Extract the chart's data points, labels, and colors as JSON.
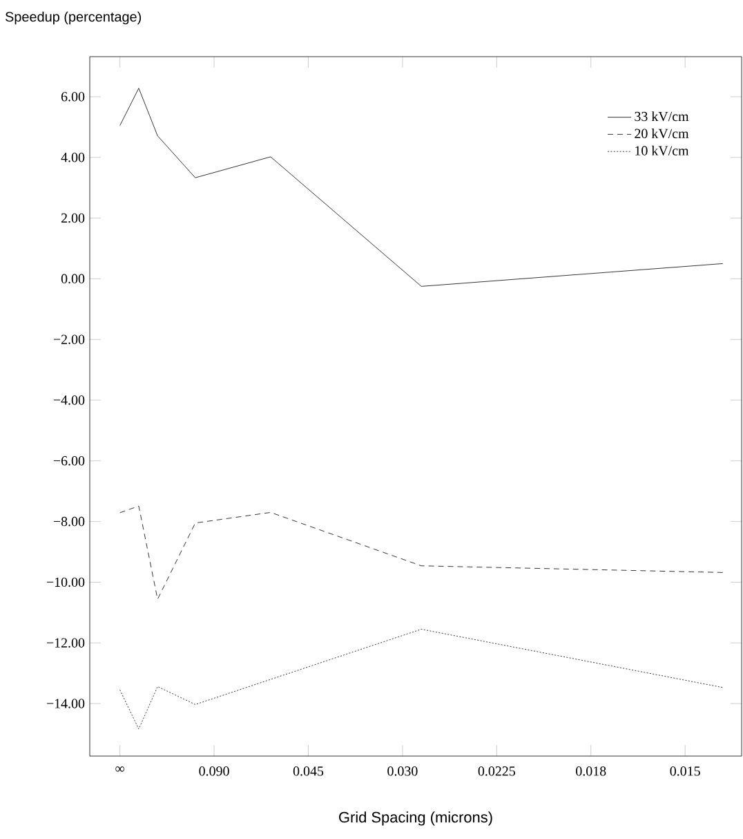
{
  "chart_data": {
    "type": "line",
    "ylabel": "Speedup (percentage)",
    "xlabel": "Grid Spacing (microns)",
    "categories": [
      "∞",
      null,
      null,
      null,
      null,
      "0.090",
      null,
      null,
      null,
      null,
      "0.045",
      null,
      null,
      null,
      null,
      "0.030",
      null,
      null,
      null,
      null,
      "0.0225",
      null,
      null,
      null,
      null,
      "0.018",
      null,
      null,
      null,
      null,
      "0.015",
      null,
      null,
      null
    ],
    "ylim": [
      -15.73,
      7.32
    ],
    "yticks": [
      {
        "value": -14,
        "label": "−14.00"
      },
      {
        "value": -12,
        "label": "−12.00"
      },
      {
        "value": -10,
        "label": "−10.00"
      },
      {
        "value": -8,
        "label": "−8.00"
      },
      {
        "value": -6,
        "label": "−6.00"
      },
      {
        "value": -4,
        "label": "−4.00"
      },
      {
        "value": -2,
        "label": "−2.00"
      },
      {
        "value": 0,
        "label": "0.00"
      },
      {
        "value": 2,
        "label": "2.00"
      },
      {
        "value": 4,
        "label": "4.00"
      },
      {
        "value": 6,
        "label": "6.00"
      }
    ],
    "legend": "top right",
    "series": [
      {
        "name": "33 kV/cm",
        "color": "#000000",
        "line_style": "solid",
        "values": [
          5.05,
          6.28,
          4.71,
          null,
          3.33,
          null,
          null,
          null,
          4.02,
          null,
          null,
          null,
          null,
          null,
          null,
          null,
          -0.25,
          null,
          null,
          null,
          null,
          null,
          null,
          null,
          null,
          null,
          null,
          null,
          null,
          null,
          null,
          null,
          0.5,
          null
        ]
      },
      {
        "name": "20 kV/cm",
        "color": "#000000",
        "line_style": "dashed",
        "values": [
          -7.71,
          -7.49,
          -10.56,
          null,
          -8.05,
          null,
          null,
          null,
          -7.7,
          null,
          null,
          null,
          null,
          null,
          null,
          null,
          -9.46,
          null,
          null,
          null,
          null,
          null,
          null,
          null,
          null,
          null,
          null,
          null,
          null,
          null,
          null,
          null,
          -9.68,
          null
        ]
      },
      {
        "name": "10 kV/cm",
        "color": "#000000",
        "line_style": "dotted",
        "values": [
          -13.55,
          -14.84,
          -13.44,
          null,
          -14.03,
          null,
          null,
          null,
          null,
          null,
          null,
          null,
          null,
          null,
          null,
          null,
          -11.55,
          null,
          null,
          null,
          null,
          null,
          null,
          null,
          null,
          null,
          null,
          null,
          null,
          null,
          null,
          null,
          -13.47,
          null
        ]
      }
    ]
  }
}
